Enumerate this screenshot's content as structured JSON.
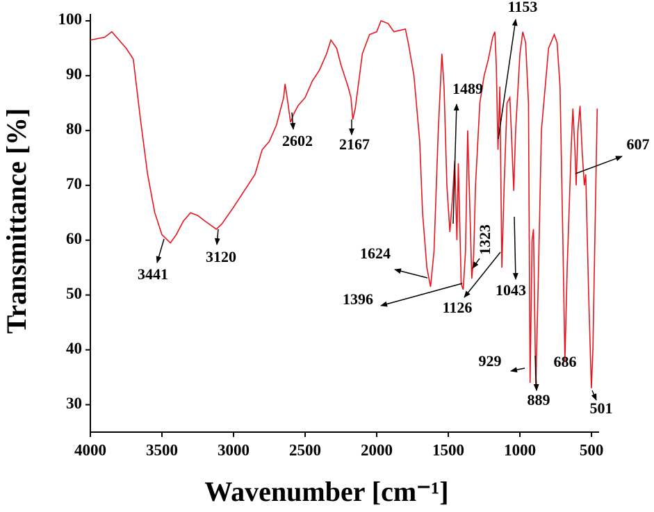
{
  "chart_data": {
    "type": "line",
    "xlabel": "Wavenumber [cm⁻¹]",
    "ylabel": "Transmittance [%]",
    "color": "#e8141c",
    "x": [
      4000,
      3900,
      3850,
      3750,
      3700,
      3650,
      3600,
      3550,
      3500,
      3441,
      3400,
      3350,
      3300,
      3250,
      3200,
      3120,
      3080,
      3000,
      2950,
      2900,
      2850,
      2800,
      2750,
      2700,
      2650,
      2640,
      2620,
      2602,
      2580,
      2550,
      2500,
      2450,
      2400,
      2350,
      2320,
      2280,
      2250,
      2200,
      2180,
      2167,
      2150,
      2120,
      2100,
      2050,
      2000,
      1970,
      1920,
      1880,
      1800,
      1780,
      1740,
      1700,
      1680,
      1650,
      1624,
      1600,
      1570,
      1545,
      1530,
      1510,
      1489,
      1470,
      1455,
      1440,
      1430,
      1410,
      1396,
      1380,
      1365,
      1350,
      1336,
      1323,
      1310,
      1280,
      1250,
      1220,
      1190,
      1175,
      1165,
      1153,
      1140,
      1126,
      1110,
      1090,
      1070,
      1060,
      1043,
      1030,
      1000,
      980,
      960,
      940,
      929,
      915,
      905,
      889,
      870,
      850,
      800,
      760,
      740,
      720,
      700,
      686,
      670,
      640,
      630,
      615,
      607,
      595,
      580,
      565,
      550,
      540,
      520,
      501,
      490,
      470,
      460
    ],
    "values": [
      96.5,
      97,
      98,
      95,
      93,
      82,
      72,
      65,
      61,
      59.5,
      61,
      63.5,
      65,
      64.5,
      63.5,
      62,
      63,
      66,
      68,
      70,
      72,
      76.5,
      78,
      81,
      86,
      88.5,
      85,
      81.5,
      83,
      84.5,
      86,
      89,
      91,
      94,
      96.5,
      95,
      92,
      88,
      86,
      82,
      84,
      90,
      94,
      97.5,
      98,
      100,
      99.5,
      98,
      98.5,
      96,
      90,
      78,
      65,
      55,
      51.5,
      58,
      80,
      94,
      88,
      70,
      61.5,
      68,
      74.5,
      60,
      74,
      52,
      51,
      58,
      80,
      66,
      53,
      57,
      70,
      85,
      90,
      93,
      97,
      98,
      92,
      76.5,
      88,
      55,
      70,
      85,
      86,
      80,
      69,
      80,
      94,
      98,
      96,
      85,
      34,
      60,
      62,
      33,
      55,
      80,
      95,
      97.5,
      96,
      88,
      60,
      38,
      55,
      78,
      84,
      76,
      70,
      80,
      84.5,
      76,
      70,
      72,
      50,
      33,
      40,
      70,
      84
    ],
    "xlim": [
      4000,
      447
    ],
    "ylim": [
      25,
      100.5
    ],
    "xticks": [
      4000,
      3500,
      3000,
      2500,
      2000,
      1500,
      1000,
      500
    ],
    "yticks": [
      30,
      40,
      50,
      60,
      70,
      80,
      90,
      100
    ],
    "annotations": [
      "3441",
      "3120",
      "2602",
      "2167",
      "1624",
      "1489",
      "1323",
      "1396",
      "1126",
      "1043",
      "1153",
      "929",
      "889",
      "686",
      "501",
      "607"
    ]
  }
}
